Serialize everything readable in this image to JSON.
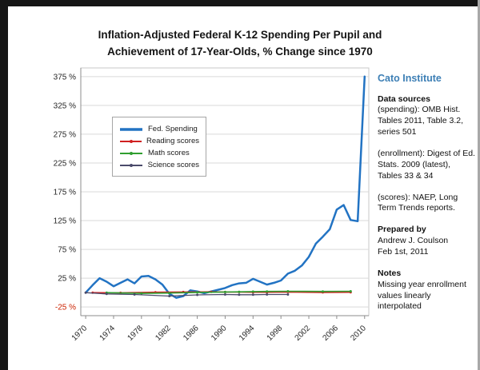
{
  "title": {
    "line1": "Inflation-Adjusted Federal K-12 Spending Per Pupil and",
    "line2": "Achievement of 17-Year-Olds, % Change since 1970"
  },
  "sidebar": {
    "brand_color": "#3d7fb5",
    "blocks": [
      {
        "type": "brand",
        "text": "Cato Institute"
      },
      {
        "type": "heading",
        "text": "Data sources"
      },
      {
        "type": "text",
        "text": "(spending): OMB Hist. Tables 2011, Table 3.2, series 501"
      },
      {
        "type": "spacer"
      },
      {
        "type": "text",
        "text": "(enrollment): Digest of Ed. Stats. 2009 (latest), Tables 33 & 34"
      },
      {
        "type": "spacer"
      },
      {
        "type": "text",
        "text": "(scores): NAEP, Long Term Trends reports."
      },
      {
        "type": "spacer"
      },
      {
        "type": "heading",
        "text": "Prepared by"
      },
      {
        "type": "text",
        "text": "Andrew J. Coulson"
      },
      {
        "type": "text",
        "text": "Feb 1st, 2011"
      },
      {
        "type": "spacer"
      },
      {
        "type": "heading",
        "text": "Notes"
      },
      {
        "type": "text",
        "text": "Missing year enrollment values linearly interpolated"
      }
    ]
  },
  "chart_data": {
    "type": "line",
    "title": "Inflation-Adjusted Federal K-12 Spending Per Pupil and Achievement of 17-Year-Olds, % Change since 1970",
    "xlim": [
      1969.3,
      2010.6
    ],
    "ylim": [
      -40,
      390
    ],
    "x_ticks": [
      1970,
      1974,
      1978,
      1982,
      1986,
      1990,
      1994,
      1998,
      2002,
      2006,
      2010
    ],
    "y_ticks": [
      -25,
      25,
      75,
      125,
      175,
      225,
      275,
      325,
      375
    ],
    "y_tick_suffix": " %",
    "negative_tick_color": "#cc2200",
    "grid_color": "#d9d9d9",
    "axis_color": "#8c8c8c",
    "legend_position": "upper-left-inside",
    "series": [
      {
        "name": "Fed. Spending",
        "color": "#2273c3",
        "width": 2.5,
        "markers": false,
        "points": [
          [
            1970,
            0
          ],
          [
            1971,
            13
          ],
          [
            1972,
            25
          ],
          [
            1973,
            19
          ],
          [
            1974,
            11
          ],
          [
            1975,
            17
          ],
          [
            1976,
            23
          ],
          [
            1977,
            16
          ],
          [
            1978,
            28
          ],
          [
            1979,
            29
          ],
          [
            1980,
            23
          ],
          [
            1981,
            14
          ],
          [
            1982,
            -2
          ],
          [
            1983,
            -9
          ],
          [
            1984,
            -6
          ],
          [
            1985,
            4
          ],
          [
            1986,
            2
          ],
          [
            1987,
            -1
          ],
          [
            1988,
            2
          ],
          [
            1989,
            5
          ],
          [
            1990,
            8
          ],
          [
            1991,
            13
          ],
          [
            1992,
            16
          ],
          [
            1993,
            17
          ],
          [
            1994,
            24
          ],
          [
            1995,
            19
          ],
          [
            1996,
            14
          ],
          [
            1997,
            17
          ],
          [
            1998,
            21
          ],
          [
            1999,
            33
          ],
          [
            2000,
            38
          ],
          [
            2001,
            47
          ],
          [
            2002,
            62
          ],
          [
            2003,
            85
          ],
          [
            2004,
            97
          ],
          [
            2005,
            110
          ],
          [
            2006,
            144
          ],
          [
            2007,
            152
          ],
          [
            2008,
            126
          ],
          [
            2009,
            124
          ],
          [
            2010,
            375
          ]
        ]
      },
      {
        "name": "Reading scores",
        "color": "#d02020",
        "width": 1.6,
        "markers": true,
        "points": [
          [
            1971,
            0
          ],
          [
            1975,
            -0.3
          ],
          [
            1980,
            0.7
          ],
          [
            1984,
            1
          ],
          [
            1988,
            1.4
          ],
          [
            1990,
            1
          ],
          [
            1992,
            1
          ],
          [
            1994,
            0.7
          ],
          [
            1996,
            0.7
          ],
          [
            1999,
            1
          ],
          [
            2004,
            0.3
          ],
          [
            2008,
            0.7
          ]
        ]
      },
      {
        "name": "Math scores",
        "color": "#2f9e2f",
        "width": 1.6,
        "markers": true,
        "points": [
          [
            1973,
            0
          ],
          [
            1978,
            -1.3
          ],
          [
            1982,
            -0.7
          ],
          [
            1986,
            0.3
          ],
          [
            1990,
            1
          ],
          [
            1992,
            1.3
          ],
          [
            1994,
            1.7
          ],
          [
            1996,
            2
          ],
          [
            1999,
            2.3
          ],
          [
            2004,
            2
          ],
          [
            2008,
            2.3
          ]
        ]
      },
      {
        "name": "Science scores",
        "color": "#4a4a6a",
        "width": 1.3,
        "markers": true,
        "points": [
          [
            1970,
            0
          ],
          [
            1973,
            -2.3
          ],
          [
            1977,
            -3.3
          ],
          [
            1982,
            -6
          ],
          [
            1986,
            -4
          ],
          [
            1990,
            -3.3
          ],
          [
            1992,
            -3.7
          ],
          [
            1994,
            -3.7
          ],
          [
            1996,
            -3.3
          ],
          [
            1999,
            -3.3
          ]
        ]
      }
    ]
  }
}
